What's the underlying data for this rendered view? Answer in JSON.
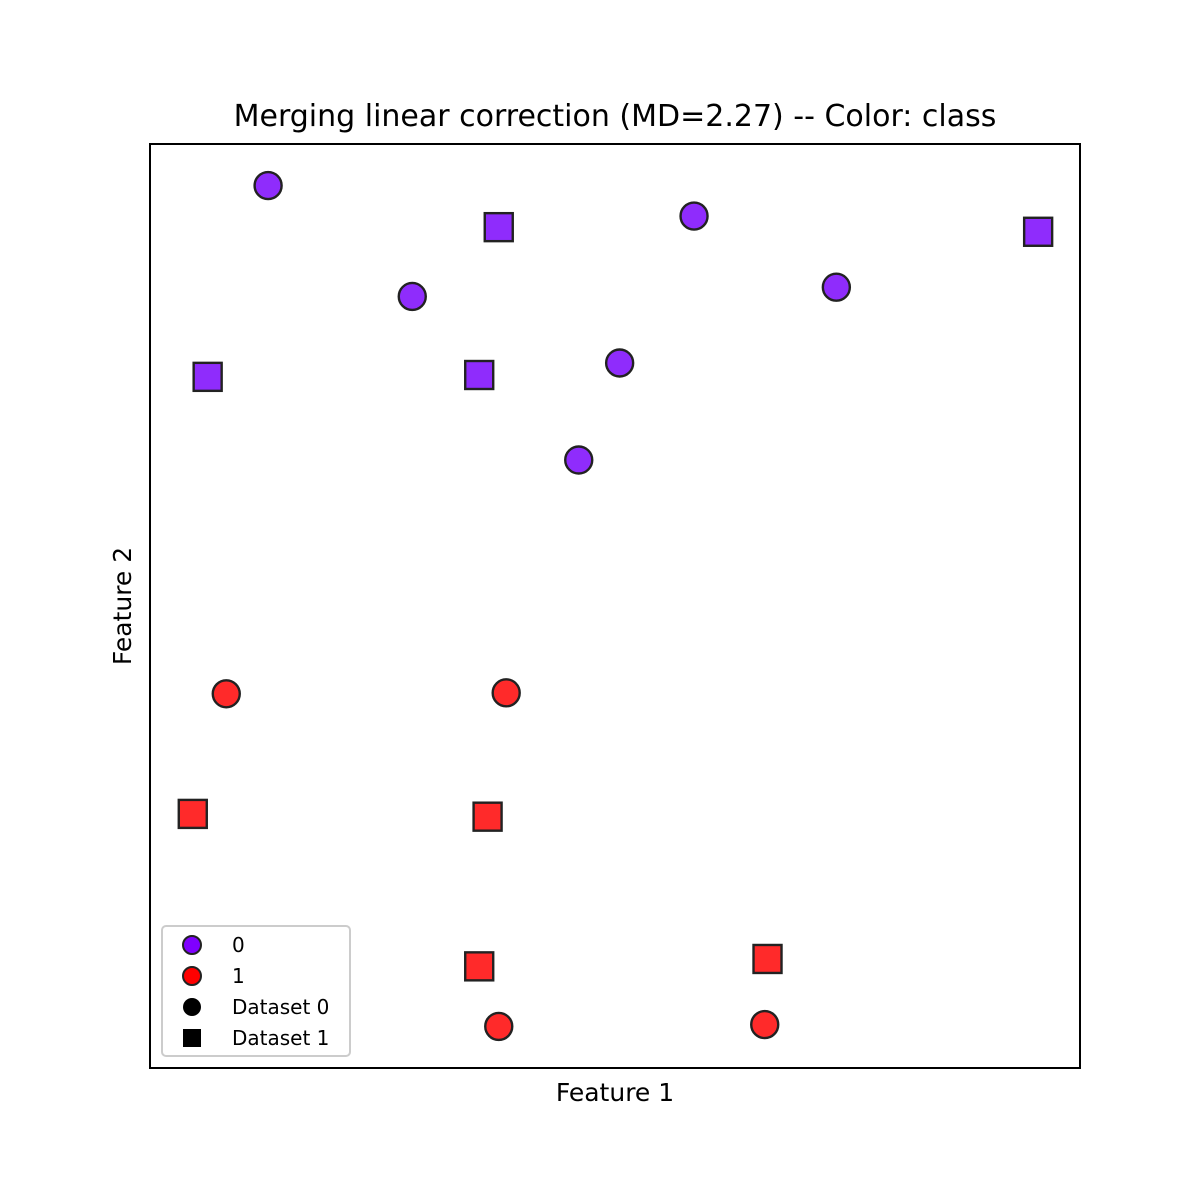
{
  "chart_data": {
    "type": "scatter",
    "title": "Merging linear correction (MD=2.27) -- Color: class",
    "xlabel": "Feature 1",
    "ylabel": "Feature 2",
    "xlim": [
      0,
      100
    ],
    "ylim": [
      0,
      100
    ],
    "x_ticks_visible": false,
    "y_ticks_visible": false,
    "grid": false,
    "legend_position": "lower-left",
    "class_colors": {
      "0": "#8f2cfc",
      "1": "#ff2a2a"
    },
    "legend_class_colors": {
      "0": "#7f00ff",
      "1": "#ff0000"
    },
    "legend": [
      {
        "label": "0",
        "marker": "circle",
        "color": "#7f00ff"
      },
      {
        "label": "1",
        "marker": "circle",
        "color": "#ff0000"
      },
      {
        "label": "Dataset 0",
        "marker": "circle",
        "color": "#000000"
      },
      {
        "label": "Dataset 1",
        "marker": "square",
        "color": "#000000"
      }
    ],
    "series": [
      {
        "dataset": 0,
        "marker": "circle",
        "points": [
          {
            "x": 12.7,
            "y": 95.5,
            "class": 0
          },
          {
            "x": 28.2,
            "y": 83.5,
            "class": 0
          },
          {
            "x": 58.5,
            "y": 92.2,
            "class": 0
          },
          {
            "x": 73.8,
            "y": 84.5,
            "class": 0
          },
          {
            "x": 50.5,
            "y": 76.3,
            "class": 0
          },
          {
            "x": 46.1,
            "y": 65.8,
            "class": 0
          },
          {
            "x": 8.2,
            "y": 40.5,
            "class": 1
          },
          {
            "x": 38.3,
            "y": 40.6,
            "class": 1
          },
          {
            "x": 37.5,
            "y": 4.5,
            "class": 1
          },
          {
            "x": 66.1,
            "y": 4.7,
            "class": 1
          }
        ]
      },
      {
        "dataset": 1,
        "marker": "square",
        "points": [
          {
            "x": 37.5,
            "y": 91.0,
            "class": 0
          },
          {
            "x": 95.5,
            "y": 90.5,
            "class": 0
          },
          {
            "x": 6.2,
            "y": 74.8,
            "class": 0
          },
          {
            "x": 35.4,
            "y": 75.0,
            "class": 0
          },
          {
            "x": 4.6,
            "y": 27.5,
            "class": 1
          },
          {
            "x": 36.3,
            "y": 27.2,
            "class": 1
          },
          {
            "x": 35.4,
            "y": 11.0,
            "class": 1
          },
          {
            "x": 66.4,
            "y": 11.8,
            "class": 1
          }
        ]
      }
    ]
  }
}
